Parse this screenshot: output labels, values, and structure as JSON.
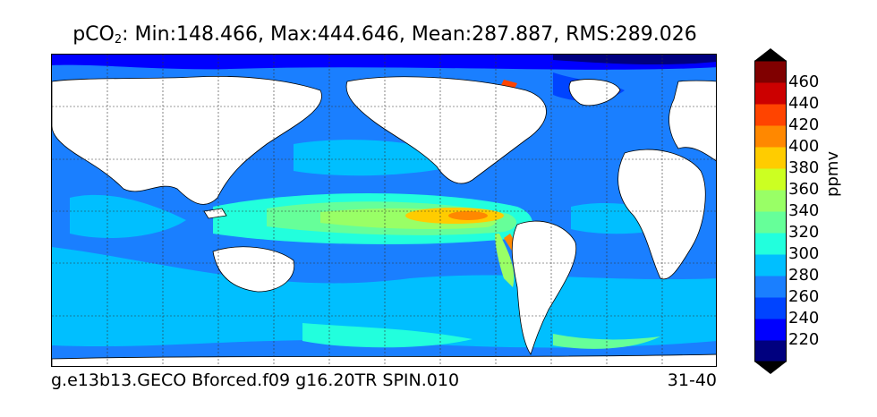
{
  "title": {
    "prefix": "pCO",
    "subscript": "2",
    "stats": ": Min:148.466, Max:444.646, Mean:287.887, RMS:289.026"
  },
  "footer": {
    "run_name": "g.e13b13.GECO Bforced.f09 g16.20TR SPIN.010",
    "years": "31-40"
  },
  "colorbar": {
    "unit": "ppmv",
    "levels": [
      200,
      220,
      240,
      260,
      280,
      300,
      320,
      340,
      360,
      380,
      400,
      420,
      440,
      460,
      480
    ],
    "labels": [
      "220",
      "240",
      "260",
      "280",
      "300",
      "320",
      "340",
      "360",
      "380",
      "400",
      "420",
      "440",
      "460"
    ],
    "colors": [
      "#00007f",
      "#0000ff",
      "#0044ff",
      "#1a7fff",
      "#00bfff",
      "#22ffdd",
      "#66ff99",
      "#99ff66",
      "#ccff22",
      "#ffcc00",
      "#ff8800",
      "#ff4400",
      "#cc0000",
      "#800000"
    ],
    "under_color": "#000000",
    "over_color": "#000000"
  },
  "map": {
    "projection": "cylindrical",
    "gridlines": "dashed",
    "land_color": "#ffffff",
    "ocean_colors": {
      "southern_ocean": "#00bfff",
      "subtropics": "#1a7fff",
      "equatorial_band": "#66ff99",
      "equatorial_core": "#ffcc00",
      "equatorial_peak": "#ff8800",
      "arctic": "#0000ff",
      "arctic_deep": "#00007f"
    }
  }
}
